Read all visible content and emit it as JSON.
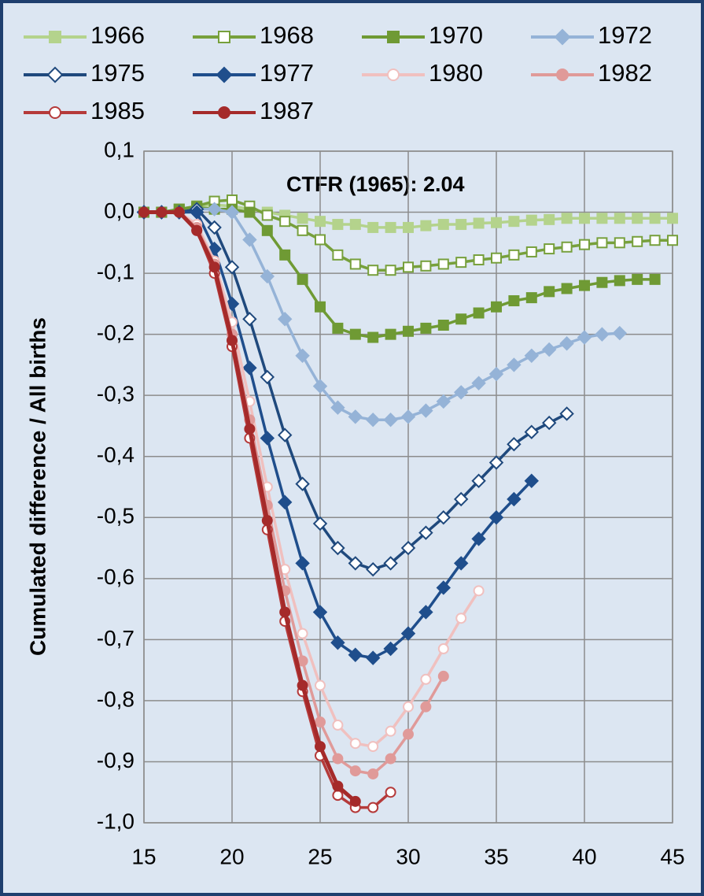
{
  "chart_data": {
    "type": "line",
    "ylabel": "Cumulated difference / All births",
    "annotation": "CTFR (1965): 2.04",
    "x": [
      15,
      16,
      17,
      18,
      19,
      20,
      21,
      22,
      23,
      24,
      25,
      26,
      27,
      28,
      29,
      30,
      31,
      32,
      33,
      34,
      35,
      36,
      37,
      38,
      39,
      40,
      41,
      42,
      43,
      44,
      45
    ],
    "xlim": [
      15,
      45
    ],
    "xticks": [
      15,
      20,
      25,
      30,
      35,
      40,
      45
    ],
    "ylim": [
      -1.0,
      0.1
    ],
    "yticks": [
      {
        "value": 0.1,
        "label": "0,1"
      },
      {
        "value": 0.0,
        "label": "0,0"
      },
      {
        "value": -0.1,
        "label": "-0,1"
      },
      {
        "value": -0.2,
        "label": "-0,2"
      },
      {
        "value": -0.3,
        "label": "-0,3"
      },
      {
        "value": -0.4,
        "label": "-0,4"
      },
      {
        "value": -0.5,
        "label": "-0,5"
      },
      {
        "value": -0.6,
        "label": "-0,6"
      },
      {
        "value": -0.7,
        "label": "-0,7"
      },
      {
        "value": -0.8,
        "label": "-0,8"
      },
      {
        "value": -0.9,
        "label": "-0,9"
      },
      {
        "value": -1.0,
        "label": "-1,0"
      }
    ],
    "grid": true,
    "legend": "top",
    "series": [
      {
        "name": "1966",
        "color": "#b4d38c",
        "marker": "square",
        "filled": true,
        "values": [
          0,
          0,
          0.005,
          0.01,
          0.012,
          0.01,
          0.005,
          0,
          -0.005,
          -0.01,
          -0.015,
          -0.02,
          -0.02,
          -0.025,
          -0.025,
          -0.025,
          -0.022,
          -0.02,
          -0.02,
          -0.018,
          -0.017,
          -0.015,
          -0.013,
          -0.012,
          -0.01,
          -0.01,
          -0.01,
          -0.01,
          -0.01,
          -0.01,
          -0.01
        ]
      },
      {
        "name": "1968",
        "color": "#77a03c",
        "marker": "square",
        "filled": false,
        "values": [
          0,
          0,
          0.005,
          0.01,
          0.018,
          0.02,
          0.01,
          -0.005,
          -0.015,
          -0.03,
          -0.045,
          -0.07,
          -0.085,
          -0.095,
          -0.095,
          -0.09,
          -0.088,
          -0.085,
          -0.082,
          -0.078,
          -0.075,
          -0.07,
          -0.065,
          -0.06,
          -0.057,
          -0.053,
          -0.05,
          -0.05,
          -0.048,
          -0.046,
          -0.046
        ]
      },
      {
        "name": "1970",
        "color": "#6f9a34",
        "marker": "square",
        "filled": true,
        "values": [
          0,
          0,
          0.005,
          0.008,
          0.005,
          0.005,
          0,
          -0.03,
          -0.07,
          -0.11,
          -0.155,
          -0.19,
          -0.2,
          -0.205,
          -0.2,
          -0.195,
          -0.19,
          -0.185,
          -0.175,
          -0.165,
          -0.155,
          -0.145,
          -0.14,
          -0.13,
          -0.125,
          -0.12,
          -0.115,
          -0.112,
          -0.11,
          -0.11,
          null
        ]
      },
      {
        "name": "1972",
        "color": "#95b3d7",
        "marker": "diamond",
        "filled": true,
        "values": [
          0,
          0,
          0,
          0.005,
          0.005,
          0,
          -0.045,
          -0.105,
          -0.175,
          -0.235,
          -0.285,
          -0.32,
          -0.335,
          -0.34,
          -0.34,
          -0.335,
          -0.325,
          -0.31,
          -0.295,
          -0.28,
          -0.265,
          -0.25,
          -0.235,
          -0.225,
          -0.215,
          -0.205,
          -0.2,
          -0.198,
          null,
          null,
          null
        ]
      },
      {
        "name": "1975",
        "color": "#1f497d",
        "marker": "diamond",
        "filled": false,
        "values": [
          0,
          0,
          0,
          0.005,
          -0.025,
          -0.09,
          -0.175,
          -0.27,
          -0.365,
          -0.445,
          -0.51,
          -0.55,
          -0.575,
          -0.585,
          -0.575,
          -0.55,
          -0.525,
          -0.5,
          -0.47,
          -0.44,
          -0.41,
          -0.38,
          -0.36,
          -0.345,
          -0.33,
          null,
          null,
          null,
          null,
          null,
          null
        ]
      },
      {
        "name": "1977",
        "color": "#1f4e8c",
        "marker": "diamond",
        "filled": true,
        "values": [
          0,
          0,
          0,
          0,
          -0.06,
          -0.15,
          -0.255,
          -0.37,
          -0.475,
          -0.575,
          -0.655,
          -0.705,
          -0.725,
          -0.73,
          -0.715,
          -0.69,
          -0.655,
          -0.615,
          -0.575,
          -0.535,
          -0.5,
          -0.47,
          -0.44,
          null,
          null,
          null,
          null,
          null,
          null,
          null,
          null
        ]
      },
      {
        "name": "1980",
        "color": "#f0c0bf",
        "marker": "circle",
        "filled": false,
        "values": [
          0,
          0,
          0,
          -0.02,
          -0.08,
          -0.18,
          -0.31,
          -0.45,
          -0.585,
          -0.69,
          -0.775,
          -0.84,
          -0.87,
          -0.875,
          -0.85,
          -0.81,
          -0.765,
          -0.715,
          -0.665,
          -0.62,
          null,
          null,
          null,
          null,
          null,
          null,
          null,
          null,
          null,
          null,
          null
        ]
      },
      {
        "name": "1982",
        "color": "#e09a99",
        "marker": "circle",
        "filled": true,
        "values": [
          0,
          0,
          0,
          -0.025,
          -0.085,
          -0.2,
          -0.34,
          -0.48,
          -0.62,
          -0.735,
          -0.835,
          -0.895,
          -0.915,
          -0.92,
          -0.895,
          -0.855,
          -0.81,
          -0.76,
          null,
          null,
          null,
          null,
          null,
          null,
          null,
          null,
          null,
          null,
          null,
          null,
          null
        ]
      },
      {
        "name": "1985",
        "color": "#b53a3a",
        "marker": "circle",
        "filled": false,
        "values": [
          0,
          0,
          0,
          -0.03,
          -0.1,
          -0.22,
          -0.37,
          -0.52,
          -0.67,
          -0.785,
          -0.89,
          -0.955,
          -0.975,
          -0.975,
          -0.95,
          null,
          null,
          null,
          null,
          null,
          null,
          null,
          null,
          null,
          null,
          null,
          null,
          null,
          null,
          null,
          null
        ]
      },
      {
        "name": "1987",
        "color": "#a52a2a",
        "marker": "circle",
        "filled": true,
        "values": [
          0,
          0,
          0,
          -0.03,
          -0.09,
          -0.21,
          -0.355,
          -0.505,
          -0.655,
          -0.775,
          -0.875,
          -0.94,
          -0.965,
          null,
          null,
          null,
          null,
          null,
          null,
          null,
          null,
          null,
          null,
          null,
          null,
          null,
          null,
          null,
          null,
          null,
          null
        ]
      }
    ]
  }
}
